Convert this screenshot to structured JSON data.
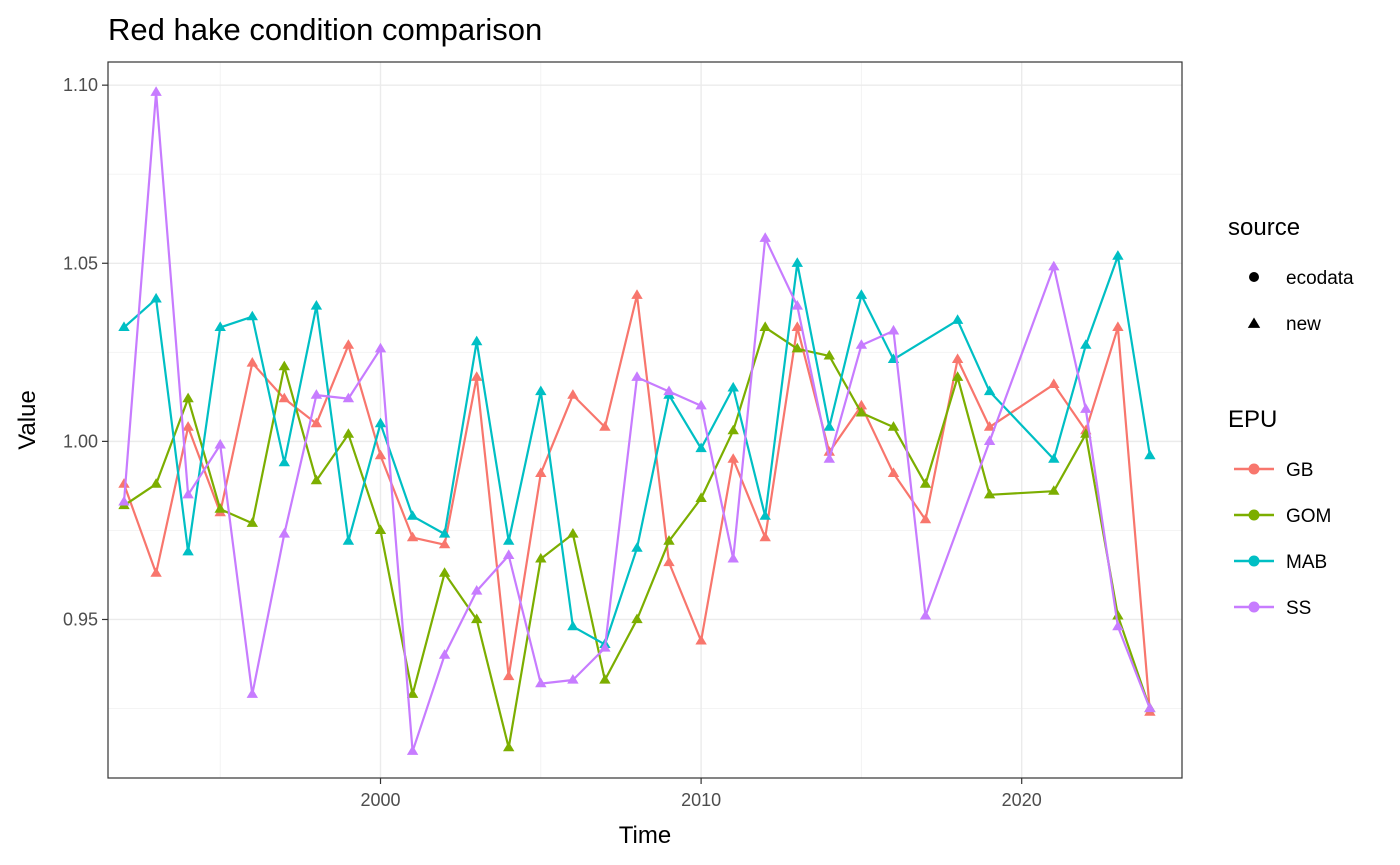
{
  "chart_data": {
    "type": "line",
    "title": "Red hake condition comparison",
    "xlabel": "Time",
    "ylabel": "Value",
    "xlim": [
      1991.5,
      2025
    ],
    "ylim": [
      0.9055,
      1.1065
    ],
    "x_ticks": [
      2000,
      2010,
      2020
    ],
    "x_tick_labels": [
      "2000",
      "2010",
      "2020"
    ],
    "y_ticks": [
      0.95,
      1.0,
      1.05,
      1.1
    ],
    "y_tick_labels": [
      "0.95",
      "1.00",
      "1.05",
      "1.10"
    ],
    "grid": true,
    "legend_position": "right",
    "legends": [
      {
        "title": "source",
        "entries": [
          {
            "label": "ecodata",
            "shape": "circle"
          },
          {
            "label": "new",
            "shape": "triangle"
          }
        ]
      },
      {
        "title": "EPU",
        "entries": [
          {
            "label": "GB",
            "color": "#F8766D"
          },
          {
            "label": "GOM",
            "color": "#7CAE00"
          },
          {
            "label": "MAB",
            "color": "#00BFC4"
          },
          {
            "label": "SS",
            "color": "#C77CFF"
          }
        ]
      }
    ],
    "series": [
      {
        "name": "GB",
        "color": "#F8766D",
        "marker": "triangle",
        "x": [
          1992,
          1993,
          1994,
          1995,
          1996,
          1997,
          1998,
          1999,
          2000,
          2001,
          2002,
          2003,
          2004,
          2005,
          2006,
          2007,
          2008,
          2009,
          2010,
          2011,
          2012,
          2013,
          2014,
          2015,
          2016,
          2017,
          2018,
          2019,
          2021,
          2022,
          2023,
          2024
        ],
        "y": [
          0.988,
          0.963,
          1.004,
          0.98,
          1.022,
          1.012,
          1.005,
          1.027,
          0.996,
          0.973,
          0.971,
          1.018,
          0.934,
          0.991,
          1.013,
          1.004,
          1.041,
          0.966,
          0.944,
          0.995,
          0.973,
          1.032,
          0.997,
          1.01,
          0.991,
          0.978,
          1.023,
          1.004,
          1.016,
          1.003,
          1.032,
          0.924
        ]
      },
      {
        "name": "GOM",
        "color": "#7CAE00",
        "marker": "triangle",
        "x": [
          1992,
          1993,
          1994,
          1995,
          1996,
          1997,
          1998,
          1999,
          2000,
          2001,
          2002,
          2003,
          2004,
          2005,
          2006,
          2007,
          2008,
          2009,
          2010,
          2011,
          2012,
          2013,
          2014,
          2015,
          2016,
          2017,
          2018,
          2019,
          2021,
          2022,
          2023,
          2024
        ],
        "y": [
          0.982,
          0.988,
          1.012,
          0.981,
          0.977,
          1.021,
          0.989,
          1.002,
          0.975,
          0.929,
          0.963,
          0.95,
          0.914,
          0.967,
          0.974,
          0.933,
          0.95,
          0.972,
          0.984,
          1.003,
          1.032,
          1.026,
          1.024,
          1.008,
          1.004,
          0.988,
          1.018,
          0.985,
          0.986,
          1.002,
          0.951,
          0.925
        ]
      },
      {
        "name": "MAB",
        "color": "#00BFC4",
        "marker": "triangle",
        "x": [
          1992,
          1993,
          1994,
          1995,
          1996,
          1997,
          1998,
          1999,
          2000,
          2001,
          2002,
          2003,
          2004,
          2005,
          2006,
          2007,
          2008,
          2009,
          2010,
          2011,
          2012,
          2013,
          2014,
          2015,
          2016,
          2018,
          2019,
          2021,
          2022,
          2023,
          2024
        ],
        "y": [
          1.032,
          1.04,
          0.969,
          1.032,
          1.035,
          0.994,
          1.038,
          0.972,
          1.005,
          0.979,
          0.974,
          1.028,
          0.972,
          1.014,
          0.948,
          0.943,
          0.97,
          1.013,
          0.998,
          1.015,
          0.979,
          1.05,
          1.004,
          1.041,
          1.023,
          1.034,
          1.014,
          0.995,
          1.027,
          1.052,
          0.996
        ]
      },
      {
        "name": "SS",
        "color": "#C77CFF",
        "marker": "triangle",
        "x": [
          1992,
          1993,
          1994,
          1995,
          1996,
          1997,
          1998,
          1999,
          2000,
          2001,
          2002,
          2003,
          2004,
          2005,
          2006,
          2007,
          2008,
          2009,
          2010,
          2011,
          2012,
          2013,
          2014,
          2015,
          2016,
          2017,
          2019,
          2021,
          2022,
          2023,
          2024
        ],
        "y": [
          0.983,
          1.098,
          0.985,
          0.999,
          0.929,
          0.974,
          1.013,
          1.012,
          1.026,
          0.913,
          0.94,
          0.958,
          0.968,
          0.932,
          0.933,
          0.942,
          1.018,
          1.014,
          1.01,
          0.967,
          1.057,
          1.038,
          0.995,
          1.027,
          1.031,
          0.951,
          1.0,
          1.049,
          1.009,
          0.948,
          0.925
        ]
      }
    ]
  }
}
